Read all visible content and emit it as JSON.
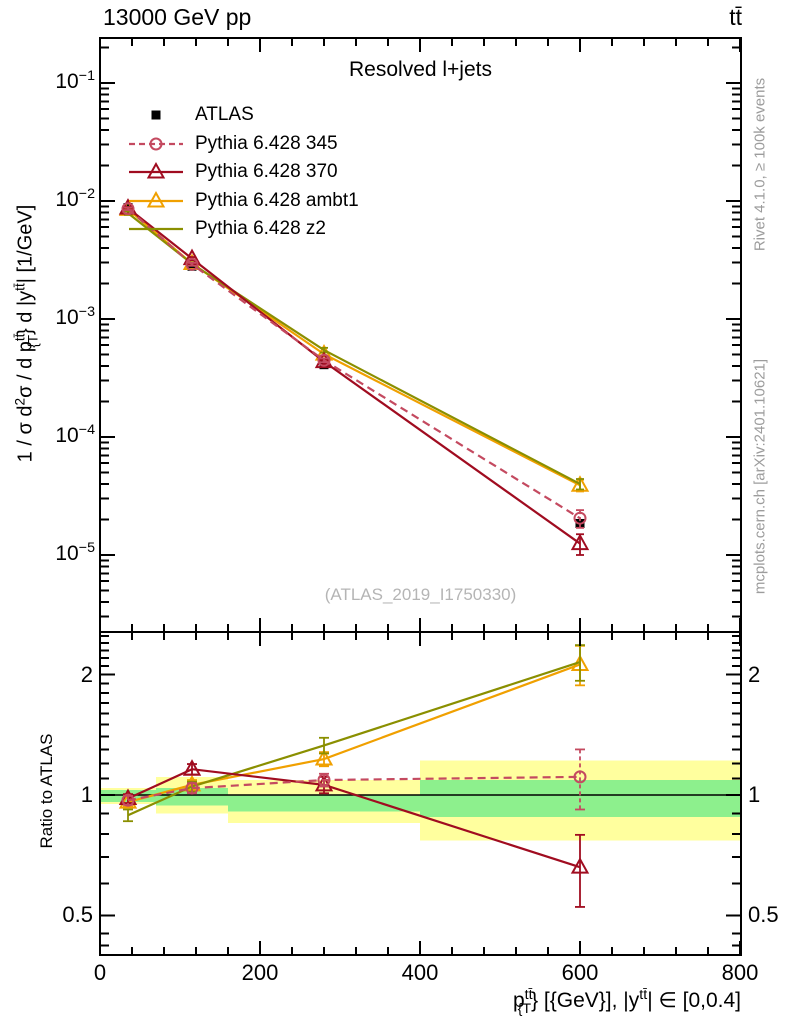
{
  "header": {
    "left": "13000 GeV pp",
    "right": "tt̄"
  },
  "title": "Resolved l+jets",
  "watermark": "(ATLAS_2019_I1750330)",
  "side_notes": {
    "top_right": "Rivet 4.1.0, ≥ 100k events",
    "bottom_right": "mcplots.cern.ch [arXiv:2401.10621]"
  },
  "axes": {
    "ratio_ylabel": "Ratio to ATLAS",
    "x_ticks": [
      0,
      200,
      400,
      600,
      800
    ],
    "x_minor_step": 40,
    "main_y_tick_exponents": [
      -1,
      -2,
      -3,
      -4,
      -5
    ],
    "ratio_y_ticks": [
      {
        "label": "2",
        "value": 2
      },
      {
        "label": "1",
        "value": 1
      },
      {
        "label": "0.5",
        "value": 0.5
      }
    ],
    "xlabel_parts": [
      {
        "text": "p",
        "style": "normal"
      },
      {
        "text": "tt̄",
        "style": "sup"
      },
      {
        "text": "{T",
        "style": "substack"
      },
      {
        "text": "} [{GeV}], |y",
        "style": "normal"
      },
      {
        "text": "tt̄",
        "style": "sup"
      },
      {
        "text": "| ∈ [0,0.4]",
        "style": "normal"
      }
    ],
    "main_ylabel_parts": [
      {
        "text": "1 / σ d",
        "style": "normal"
      },
      {
        "text": "2",
        "style": "sup"
      },
      {
        "text": "σ / d p",
        "style": "normal"
      },
      {
        "text": "tt̄",
        "style": "sup"
      },
      {
        "text": "{T",
        "style": "substack"
      },
      {
        "text": "} d |y",
        "style": "normal"
      },
      {
        "text": "tt̄",
        "style": "sup"
      },
      {
        "text": "| [1/GeV]",
        "style": "normal"
      }
    ]
  },
  "colors": {
    "atlas": "#000000",
    "pythia_345": "#c44a60",
    "pythia_370": "#a00c20",
    "pythia_ambt1": "#f0a000",
    "pythia_z2": "#8a8f00",
    "band_green": "#8df08d",
    "band_yellow": "#ffff9e",
    "gray_text": "#9c9c9c"
  },
  "chart_data": [
    {
      "type": "line",
      "title": "Resolved l+jets",
      "xlabel": "pT(ttbar) [GeV], |y(ttbar)| in [0,0.4]",
      "ylabel": "1/sigma d2sigma / dpT(ttbar) d|y(ttbar)| [1/GeV]",
      "yscale": "log",
      "xlim": [
        0,
        800
      ],
      "ylim": [
        2.2e-06,
        0.235
      ],
      "x": [
        35,
        115,
        280,
        600
      ],
      "series": [
        {
          "name": "ATLAS",
          "color": "#000000",
          "marker": "filled-square",
          "linestyle": "none",
          "values": [
            0.0088,
            0.0028,
            0.00041,
            1.85e-05
          ]
        },
        {
          "name": "Pythia 6.428 345",
          "color": "#c44a60",
          "marker": "open-circle",
          "linestyle": "dashed",
          "values": [
            0.0086,
            0.00291,
            0.000447,
            2.05e-05
          ]
        },
        {
          "name": "Pythia 6.428 370",
          "color": "#a00c20",
          "marker": "open-triangle",
          "linestyle": "solid",
          "values": [
            0.0087,
            0.00325,
            0.000435,
            1.25e-05
          ]
        },
        {
          "name": "Pythia 6.428 ambt1",
          "color": "#f0a000",
          "marker": "open-triangle",
          "linestyle": "solid",
          "values": [
            0.0085,
            0.00295,
            0.000504,
            3.9e-05
          ]
        },
        {
          "name": "Pythia 6.428 z2",
          "color": "#8a8f00",
          "marker": "none",
          "linestyle": "solid",
          "values": [
            0.0079,
            0.00294,
            0.000545,
            4e-05
          ]
        }
      ]
    },
    {
      "type": "line",
      "ylabel": "Ratio to ATLAS",
      "yscale": "log",
      "xlim": [
        0,
        800
      ],
      "ylim": [
        0.4,
        2.56
      ],
      "x": [
        35,
        115,
        280,
        600
      ],
      "bands": {
        "bin_edges": [
          0,
          70,
          160,
          400,
          800
        ],
        "yellow": [
          [
            0.95,
            1.04
          ],
          [
            0.9,
            1.11
          ],
          [
            0.85,
            1.09
          ],
          [
            0.77,
            1.22
          ]
        ],
        "green": [
          [
            0.96,
            1.03
          ],
          [
            0.94,
            1.04
          ],
          [
            0.91,
            1.0
          ],
          [
            0.88,
            1.09
          ]
        ]
      },
      "series": [
        {
          "name": "Pythia 6.428 345",
          "values": [
            0.97,
            1.04,
            1.09,
            1.11
          ],
          "yerr": [
            0.025,
            0.03,
            0.04,
            0.19
          ]
        },
        {
          "name": "Pythia 6.428 370",
          "values": [
            0.98,
            1.16,
            1.06,
            0.66
          ],
          "yerr": [
            0.025,
            0.035,
            0.05,
            0.135
          ]
        },
        {
          "name": "Pythia 6.428 ambt1",
          "values": [
            0.96,
            1.06,
            1.23,
            2.12
          ],
          "yerr": [
            0.025,
            0.03,
            0.05,
            0.24
          ]
        },
        {
          "name": "Pythia 6.428 z2",
          "values": [
            0.89,
            1.05,
            1.33,
            2.15
          ],
          "yerr": [
            0.03,
            0.03,
            0.06,
            0.22
          ]
        }
      ]
    }
  ]
}
